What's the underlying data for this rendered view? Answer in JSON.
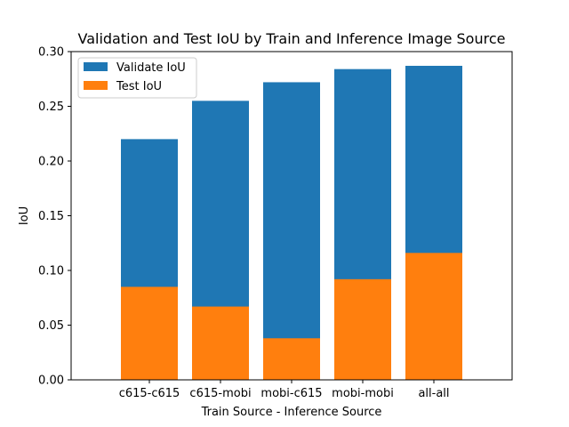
{
  "chart_data": {
    "type": "bar",
    "title": "Validation and Test IoU by Train and Inference Image Source",
    "xlabel": "Train Source - Inference Source",
    "ylabel": "IoU",
    "categories": [
      "c615-c615",
      "c615-mobi",
      "mobi-c615",
      "mobi-mobi",
      "all-all"
    ],
    "series": [
      {
        "name": "Validate IoU",
        "color": "#1f77b4",
        "values": [
          0.22,
          0.255,
          0.272,
          0.284,
          0.287
        ]
      },
      {
        "name": "Test IoU",
        "color": "#ff7f0e",
        "values": [
          0.085,
          0.067,
          0.038,
          0.092,
          0.116
        ]
      }
    ],
    "ylim": [
      0,
      0.3
    ],
    "yticks": [
      "0.00",
      "0.05",
      "0.10",
      "0.15",
      "0.20",
      "0.25",
      "0.30"
    ],
    "overlaid": true,
    "grid": false,
    "legend_position": "top-left"
  }
}
